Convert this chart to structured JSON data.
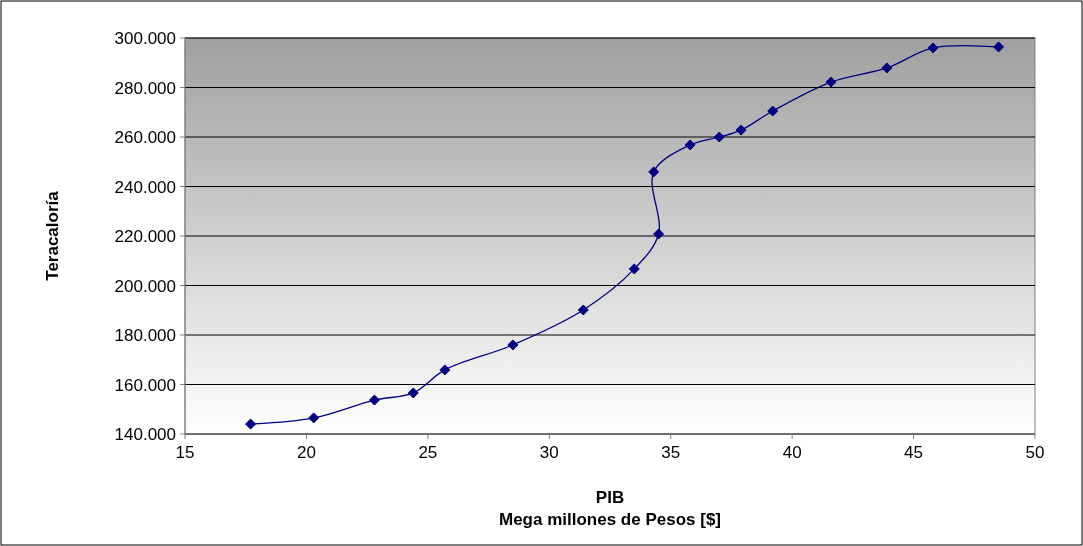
{
  "chart_data": {
    "type": "line",
    "ylabel": "Teracaloría",
    "xlabel": "PIB\nMega millones de Pesos [$]",
    "x": [
      17.7,
      20.3,
      22.8,
      24.4,
      25.7,
      28.5,
      31.4,
      33.5,
      34.5,
      34.3,
      35.8,
      37.0,
      37.9,
      39.2,
      41.6,
      43.9,
      45.8,
      48.5
    ],
    "series": [
      {
        "color": "#000080",
        "values": [
          144000,
          146500,
          153700,
          156600,
          165900,
          176000,
          190100,
          206700,
          220800,
          245900,
          256800,
          260000,
          262800,
          270500,
          282200,
          287900,
          296000,
          296400
        ]
      }
    ],
    "xlim": [
      15,
      50
    ],
    "xticks": [
      15,
      20,
      25,
      30,
      35,
      40,
      45,
      50
    ],
    "ylim": [
      140000,
      300000
    ],
    "yticks": [
      {
        "value": 140000,
        "label": "140.000"
      },
      {
        "value": 160000,
        "label": "160.000"
      },
      {
        "value": 180000,
        "label": "180.000"
      },
      {
        "value": 200000,
        "label": "200.000"
      },
      {
        "value": 220000,
        "label": "220.000"
      },
      {
        "value": 240000,
        "label": "240.000"
      },
      {
        "value": 260000,
        "label": "260.000"
      },
      {
        "value": 280000,
        "label": "280.000"
      },
      {
        "value": 300000,
        "label": "300.000"
      }
    ],
    "grid": "y",
    "marker": "diamond",
    "line_style": "solid"
  }
}
